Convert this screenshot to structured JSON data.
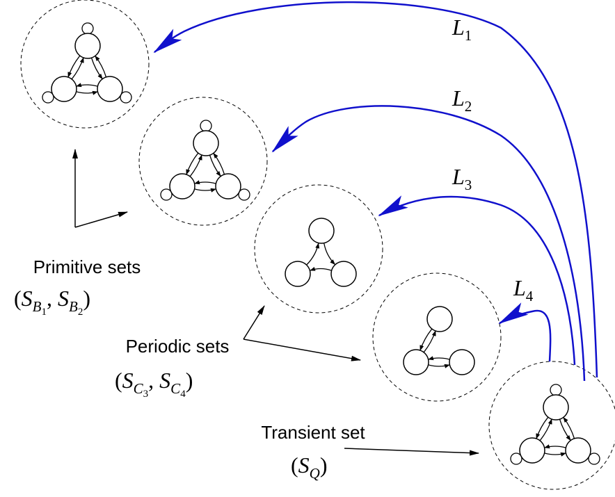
{
  "links": [
    {
      "runs": [
        {
          "t": "L",
          "sub": 0
        },
        {
          "t": "1",
          "sub": 1
        }
      ]
    },
    {
      "runs": [
        {
          "t": "L",
          "sub": 0
        },
        {
          "t": "2",
          "sub": 1
        }
      ]
    },
    {
      "runs": [
        {
          "t": "L",
          "sub": 0
        },
        {
          "t": "3",
          "sub": 1
        }
      ]
    },
    {
      "runs": [
        {
          "t": "L",
          "sub": 0
        },
        {
          "t": "4",
          "sub": 1
        }
      ]
    }
  ],
  "sets": [
    {
      "name": "Primitive sets",
      "notation": [
        {
          "t": "(",
          "sub": 0
        },
        {
          "t": "S",
          "sub": 0
        },
        {
          "t": "B",
          "sub": 1
        },
        {
          "t": "1",
          "sub": 2
        },
        {
          "t": ", ",
          "sub": 0
        },
        {
          "t": "S",
          "sub": 0
        },
        {
          "t": "B",
          "sub": 1
        },
        {
          "t": "2",
          "sub": 2
        },
        {
          "t": ")",
          "sub": 0
        }
      ]
    },
    {
      "name": "Periodic sets",
      "notation": [
        {
          "t": "(",
          "sub": 0
        },
        {
          "t": "S",
          "sub": 0
        },
        {
          "t": "C",
          "sub": 1
        },
        {
          "t": "3",
          "sub": 2
        },
        {
          "t": ", ",
          "sub": 0
        },
        {
          "t": "S",
          "sub": 0
        },
        {
          "t": "C",
          "sub": 1
        },
        {
          "t": "4",
          "sub": 2
        },
        {
          "t": ")",
          "sub": 0
        }
      ]
    },
    {
      "name": "Transient set",
      "notation": [
        {
          "t": "(",
          "sub": 0
        },
        {
          "t": "S",
          "sub": 0
        },
        {
          "t": "Q",
          "sub": 1
        },
        {
          "t": ")",
          "sub": 0
        }
      ]
    }
  ]
}
